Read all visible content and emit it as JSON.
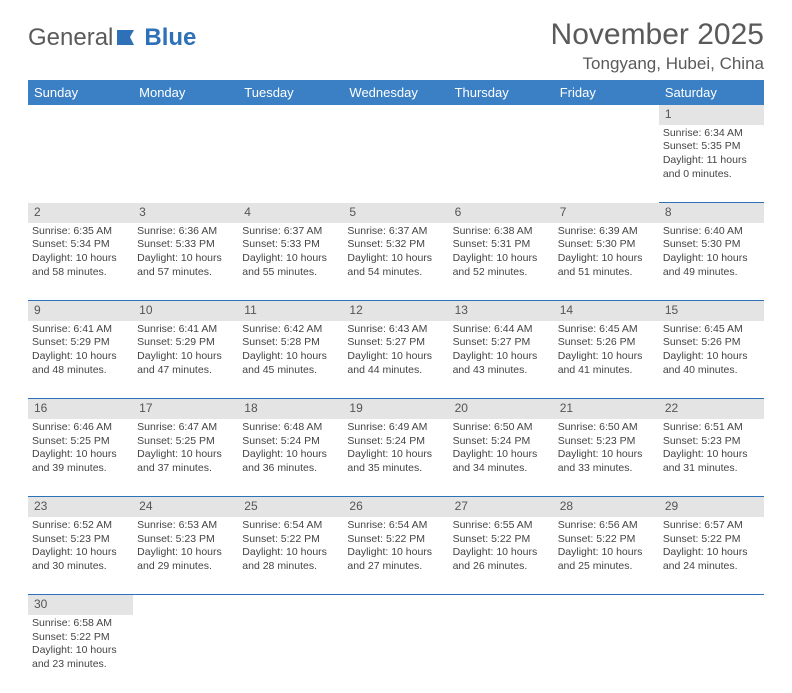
{
  "logo": {
    "text1": "General",
    "text2": "Blue"
  },
  "title": "November 2025",
  "location": "Tongyang, Hubei, China",
  "colors": {
    "header_bg": "#3b7fc4",
    "header_text": "#ffffff",
    "daynum_bg": "#e4e4e4",
    "border": "#2f71b8",
    "text": "#444444",
    "logo_gray": "#5a5a5a",
    "logo_blue": "#2f71b8"
  },
  "weekdays": [
    "Sunday",
    "Monday",
    "Tuesday",
    "Wednesday",
    "Thursday",
    "Friday",
    "Saturday"
  ],
  "weeks": [
    {
      "nums": [
        "",
        "",
        "",
        "",
        "",
        "",
        "1"
      ],
      "cells": [
        "",
        "",
        "",
        "",
        "",
        "",
        "Sunrise: 6:34 AM\nSunset: 5:35 PM\nDaylight: 11 hours and 0 minutes."
      ]
    },
    {
      "nums": [
        "2",
        "3",
        "4",
        "5",
        "6",
        "7",
        "8"
      ],
      "cells": [
        "Sunrise: 6:35 AM\nSunset: 5:34 PM\nDaylight: 10 hours and 58 minutes.",
        "Sunrise: 6:36 AM\nSunset: 5:33 PM\nDaylight: 10 hours and 57 minutes.",
        "Sunrise: 6:37 AM\nSunset: 5:33 PM\nDaylight: 10 hours and 55 minutes.",
        "Sunrise: 6:37 AM\nSunset: 5:32 PM\nDaylight: 10 hours and 54 minutes.",
        "Sunrise: 6:38 AM\nSunset: 5:31 PM\nDaylight: 10 hours and 52 minutes.",
        "Sunrise: 6:39 AM\nSunset: 5:30 PM\nDaylight: 10 hours and 51 minutes.",
        "Sunrise: 6:40 AM\nSunset: 5:30 PM\nDaylight: 10 hours and 49 minutes."
      ]
    },
    {
      "nums": [
        "9",
        "10",
        "11",
        "12",
        "13",
        "14",
        "15"
      ],
      "cells": [
        "Sunrise: 6:41 AM\nSunset: 5:29 PM\nDaylight: 10 hours and 48 minutes.",
        "Sunrise: 6:41 AM\nSunset: 5:29 PM\nDaylight: 10 hours and 47 minutes.",
        "Sunrise: 6:42 AM\nSunset: 5:28 PM\nDaylight: 10 hours and 45 minutes.",
        "Sunrise: 6:43 AM\nSunset: 5:27 PM\nDaylight: 10 hours and 44 minutes.",
        "Sunrise: 6:44 AM\nSunset: 5:27 PM\nDaylight: 10 hours and 43 minutes.",
        "Sunrise: 6:45 AM\nSunset: 5:26 PM\nDaylight: 10 hours and 41 minutes.",
        "Sunrise: 6:45 AM\nSunset: 5:26 PM\nDaylight: 10 hours and 40 minutes."
      ]
    },
    {
      "nums": [
        "16",
        "17",
        "18",
        "19",
        "20",
        "21",
        "22"
      ],
      "cells": [
        "Sunrise: 6:46 AM\nSunset: 5:25 PM\nDaylight: 10 hours and 39 minutes.",
        "Sunrise: 6:47 AM\nSunset: 5:25 PM\nDaylight: 10 hours and 37 minutes.",
        "Sunrise: 6:48 AM\nSunset: 5:24 PM\nDaylight: 10 hours and 36 minutes.",
        "Sunrise: 6:49 AM\nSunset: 5:24 PM\nDaylight: 10 hours and 35 minutes.",
        "Sunrise: 6:50 AM\nSunset: 5:24 PM\nDaylight: 10 hours and 34 minutes.",
        "Sunrise: 6:50 AM\nSunset: 5:23 PM\nDaylight: 10 hours and 33 minutes.",
        "Sunrise: 6:51 AM\nSunset: 5:23 PM\nDaylight: 10 hours and 31 minutes."
      ]
    },
    {
      "nums": [
        "23",
        "24",
        "25",
        "26",
        "27",
        "28",
        "29"
      ],
      "cells": [
        "Sunrise: 6:52 AM\nSunset: 5:23 PM\nDaylight: 10 hours and 30 minutes.",
        "Sunrise: 6:53 AM\nSunset: 5:23 PM\nDaylight: 10 hours and 29 minutes.",
        "Sunrise: 6:54 AM\nSunset: 5:22 PM\nDaylight: 10 hours and 28 minutes.",
        "Sunrise: 6:54 AM\nSunset: 5:22 PM\nDaylight: 10 hours and 27 minutes.",
        "Sunrise: 6:55 AM\nSunset: 5:22 PM\nDaylight: 10 hours and 26 minutes.",
        "Sunrise: 6:56 AM\nSunset: 5:22 PM\nDaylight: 10 hours and 25 minutes.",
        "Sunrise: 6:57 AM\nSunset: 5:22 PM\nDaylight: 10 hours and 24 minutes."
      ]
    },
    {
      "nums": [
        "30",
        "",
        "",
        "",
        "",
        "",
        ""
      ],
      "cells": [
        "Sunrise: 6:58 AM\nSunset: 5:22 PM\nDaylight: 10 hours and 23 minutes.",
        "",
        "",
        "",
        "",
        "",
        ""
      ]
    }
  ]
}
